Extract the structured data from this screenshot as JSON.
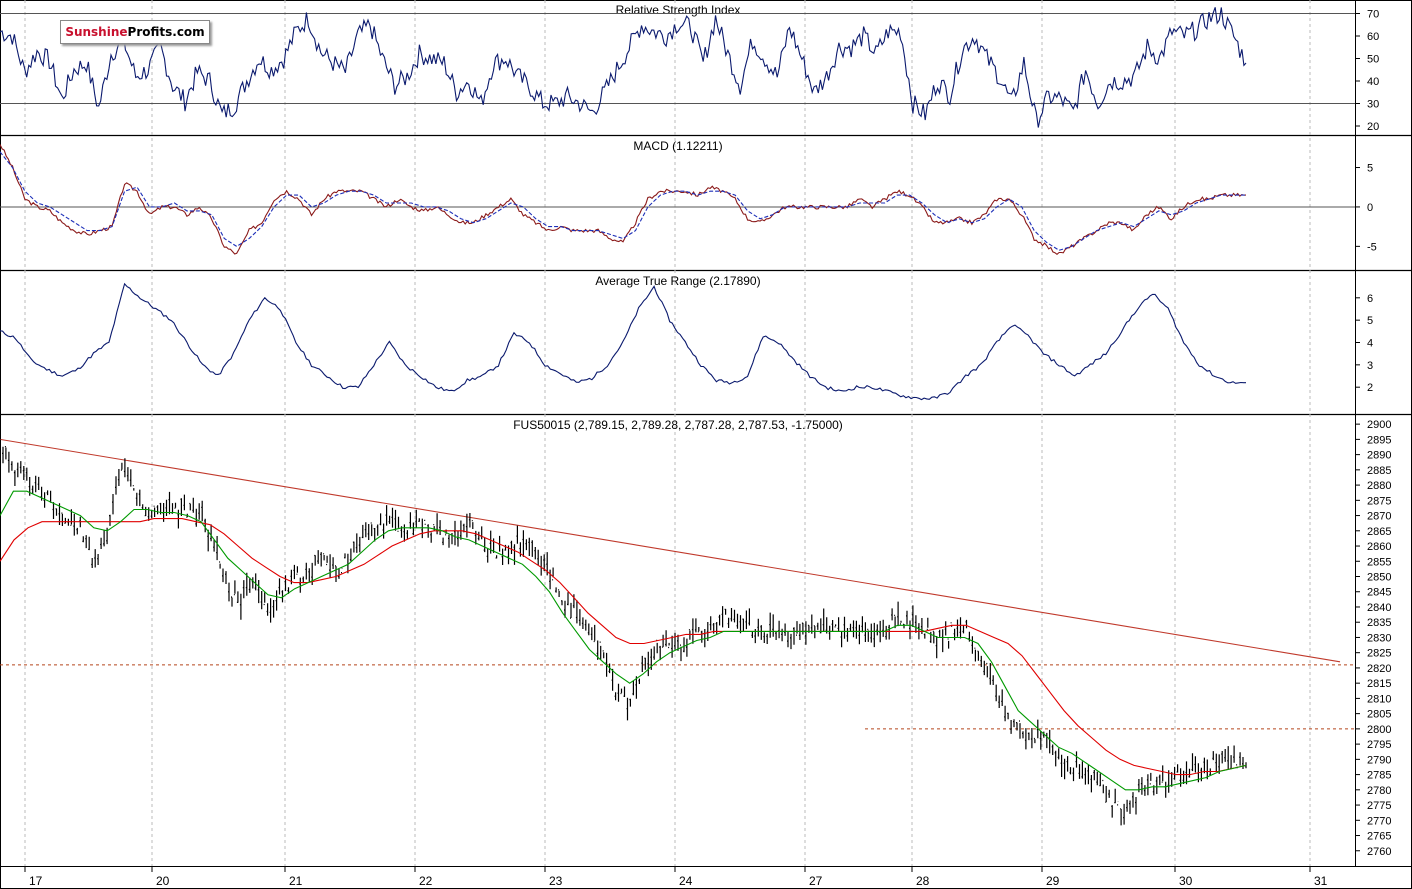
{
  "logo": {
    "part1": "Sunshine",
    "part2": "Profits.com"
  },
  "colors": {
    "line": "#0b1a6e",
    "price": "#000000",
    "ma_fast": "#009a00",
    "ma_slow": "#e00000",
    "trend": "#c0392b",
    "support": "#b5451b"
  },
  "x_axis": {
    "labels": [
      "17",
      "20",
      "21",
      "22",
      "23",
      "24",
      "27",
      "28",
      "29",
      "30",
      "31"
    ]
  },
  "chart_data": [
    {
      "type": "line",
      "title": "Relative Strength Index",
      "ylim": [
        16,
        76
      ],
      "yticks": [
        20,
        30,
        40,
        50,
        60,
        70
      ],
      "reference_lines": [
        30,
        70
      ],
      "series": [
        {
          "values": [
            62,
            60,
            44,
            53,
            49,
            32,
            45,
            48,
            28,
            52,
            58,
            42,
            45,
            55,
            38,
            31,
            44,
            40,
            25,
            29,
            40,
            50,
            45,
            50,
            62,
            68,
            53,
            48,
            44,
            60,
            65,
            50,
            38,
            42,
            52,
            50,
            48,
            35,
            40,
            30,
            48,
            50,
            42,
            37,
            30,
            30,
            33,
            30,
            26,
            35,
            45,
            55,
            65,
            62,
            60,
            66,
            64,
            48,
            68,
            52,
            38,
            58,
            50,
            42,
            64,
            50,
            35,
            42,
            55,
            55,
            60,
            52,
            62,
            62,
            30,
            25,
            40,
            34,
            54,
            60,
            50,
            42,
            30,
            48,
            22,
            33,
            32,
            26,
            45,
            30,
            40,
            40,
            42,
            55,
            50,
            62,
            60,
            63,
            68,
            70,
            60,
            48
          ]
        }
      ]
    },
    {
      "type": "line",
      "title": "MACD (1.12211)",
      "ylim": [
        -8,
        9
      ],
      "yticks": [
        -5,
        0,
        5
      ],
      "reference_lines": [
        0
      ],
      "series": [
        {
          "name": "",
          "values": [
            8,
            5,
            1,
            0,
            -0.5,
            -2,
            -3,
            -3.5,
            -3,
            -2.5,
            3,
            2,
            -1,
            0,
            0,
            -1,
            0,
            -1.5,
            -5,
            -6,
            -3,
            -2,
            1,
            2,
            1,
            -1,
            1,
            2,
            2,
            2,
            1,
            0,
            1,
            0,
            -0.5,
            0,
            -1,
            -2,
            -2,
            -1,
            0,
            1,
            -1,
            -2,
            -3,
            -2.5,
            -3,
            -3,
            -3,
            -4,
            -4.5,
            -2,
            1,
            2,
            2,
            2,
            1.5,
            2.5,
            2,
            1,
            -1.5,
            -2,
            -1,
            0,
            0,
            0,
            0,
            0,
            0,
            1,
            0,
            1,
            2,
            1.5,
            0,
            -2,
            -2,
            -1.5,
            -2,
            -1,
            1,
            1,
            -1,
            -4,
            -5,
            -6,
            -5,
            -4,
            -3,
            -2,
            -2,
            -3,
            -1,
            0,
            -1.5,
            0,
            1,
            1,
            1.5,
            1.5,
            1.5
          ]
        },
        {
          "name": "",
          "values": [
            7,
            5,
            2,
            0.5,
            0,
            -1,
            -2,
            -3,
            -3,
            -2.5,
            2,
            2.5,
            0,
            0,
            0.5,
            -0.5,
            -0.5,
            -1,
            -4,
            -5,
            -4,
            -2.5,
            0,
            1.5,
            1.5,
            0,
            0.5,
            1.5,
            2,
            2,
            1.5,
            0.5,
            0.5,
            0.5,
            0,
            0,
            -0.5,
            -1.5,
            -2,
            -1.5,
            -0.5,
            0.5,
            0,
            -1.5,
            -2.5,
            -2.5,
            -3,
            -3,
            -3,
            -3.5,
            -4,
            -3,
            0,
            1.5,
            2,
            2,
            1.5,
            2,
            2,
            1.5,
            -0.5,
            -1.5,
            -1,
            0,
            0,
            0,
            0,
            0,
            0,
            0.5,
            0.5,
            0.5,
            1.5,
            1.5,
            0.5,
            -1,
            -2,
            -1.5,
            -2,
            -1.5,
            0,
            1,
            0,
            -3,
            -4.5,
            -5.5,
            -5,
            -4,
            -3,
            -2.5,
            -2,
            -2.5,
            -1.5,
            -0.5,
            -1,
            -0.5,
            0.5,
            1,
            1.5,
            1.5,
            1.5
          ]
        }
      ]
    },
    {
      "type": "line",
      "title": "Average True Range (2.17890)",
      "ylim": [
        0.8,
        7.2
      ],
      "yticks": [
        2,
        3,
        4,
        5,
        6
      ],
      "series": [
        {
          "values": [
            4.5,
            4.2,
            3.2,
            2.8,
            2.5,
            2.8,
            3.5,
            4,
            6.6,
            6,
            5.5,
            5,
            4,
            3,
            2.5,
            3.5,
            5,
            6,
            5.5,
            4,
            3,
            2.5,
            2,
            2,
            3,
            4,
            3,
            2.5,
            2,
            1.8,
            2.3,
            2.5,
            3,
            4.4,
            4,
            3,
            2.6,
            2.2,
            2.4,
            3,
            4,
            5.5,
            6.5,
            5,
            4,
            3,
            2.3,
            2.2,
            2.5,
            4.3,
            4,
            3.2,
            2.5,
            2,
            1.8,
            2,
            2,
            1.8,
            1.6,
            1.5,
            1.5,
            1.8,
            2.5,
            3,
            4,
            4.8,
            4.3,
            3.5,
            3,
            2.5,
            3,
            3.5,
            4.5,
            5.5,
            6.2,
            5.5,
            4,
            3,
            2.5,
            2.2,
            2.2
          ]
        }
      ]
    },
    {
      "type": "line",
      "title": "FUS50015 (2,789.15, 2,789.28, 2,787.28, 2,787.53, -1.75000)",
      "ylim": [
        2755,
        2903
      ],
      "yticks": [
        2760,
        2765,
        2770,
        2775,
        2780,
        2785,
        2790,
        2795,
        2800,
        2805,
        2810,
        2815,
        2820,
        2825,
        2830,
        2835,
        2840,
        2845,
        2850,
        2855,
        2860,
        2865,
        2870,
        2875,
        2880,
        2885,
        2890,
        2895,
        2900
      ],
      "series": [
        {
          "name": "",
          "values": [
            2893,
            2885,
            2882,
            2878,
            2873,
            2870,
            2865,
            2855,
            2862,
            2886,
            2878,
            2870,
            2873,
            2871,
            2872,
            2870,
            2860,
            2845,
            2842,
            2850,
            2838,
            2845,
            2850,
            2852,
            2856,
            2852,
            2856,
            2862,
            2866,
            2868,
            2866,
            2866,
            2866,
            2865,
            2862,
            2868,
            2861,
            2858,
            2858,
            2862,
            2858,
            2852,
            2842,
            2838,
            2830,
            2825,
            2812,
            2808,
            2820,
            2826,
            2828,
            2828,
            2832,
            2832,
            2838,
            2835,
            2833,
            2832,
            2833,
            2832,
            2832,
            2834,
            2832,
            2832,
            2832,
            2831,
            2832,
            2836,
            2836,
            2833,
            2828,
            2832,
            2834,
            2826,
            2816,
            2805,
            2800,
            2798,
            2797,
            2790,
            2788,
            2785,
            2783,
            2775,
            2772,
            2780,
            2782,
            2782,
            2784,
            2786,
            2788,
            2790,
            2789,
            2788
          ]
        },
        {
          "name": "",
          "values": [
            2870,
            2878,
            2878,
            2876,
            2874,
            2872,
            2870,
            2866,
            2865,
            2868,
            2872,
            2872,
            2871,
            2871,
            2870,
            2868,
            2862,
            2856,
            2852,
            2848,
            2844,
            2843,
            2846,
            2848,
            2850,
            2852,
            2854,
            2858,
            2862,
            2865,
            2866,
            2866,
            2866,
            2865,
            2863,
            2862,
            2860,
            2858,
            2856,
            2854,
            2850,
            2845,
            2838,
            2832,
            2826,
            2822,
            2818,
            2815,
            2818,
            2822,
            2825,
            2827,
            2829,
            2830,
            2832,
            2832,
            2832,
            2832,
            2832,
            2832,
            2832,
            2832,
            2832,
            2832,
            2832,
            2832,
            2832,
            2834,
            2834,
            2832,
            2830,
            2830,
            2830,
            2828,
            2822,
            2814,
            2806,
            2802,
            2798,
            2794,
            2792,
            2789,
            2786,
            2783,
            2780,
            2780,
            2781,
            2781,
            2782,
            2783,
            2784,
            2786,
            2787,
            2788
          ]
        },
        {
          "name": "",
          "values": [
            2855,
            2862,
            2866,
            2868,
            2868,
            2868,
            2868,
            2868,
            2868,
            2868,
            2868,
            2869,
            2869,
            2869,
            2868,
            2867,
            2864,
            2860,
            2856,
            2853,
            2850,
            2848,
            2848,
            2849,
            2850,
            2852,
            2854,
            2857,
            2860,
            2862,
            2864,
            2865,
            2865,
            2865,
            2864,
            2862,
            2860,
            2858,
            2855,
            2852,
            2848,
            2843,
            2838,
            2834,
            2830,
            2828,
            2828,
            2829,
            2830,
            2831,
            2831,
            2832,
            2832,
            2832,
            2832,
            2832,
            2832,
            2832,
            2832,
            2832,
            2832,
            2832,
            2832,
            2832,
            2832,
            2832,
            2832,
            2833,
            2834,
            2834,
            2832,
            2830,
            2828,
            2824,
            2818,
            2812,
            2806,
            2801,
            2797,
            2793,
            2790,
            2788,
            2787,
            2786,
            2785,
            2785,
            2786,
            2786,
            2787,
            2788
          ]
        }
      ]
    }
  ]
}
